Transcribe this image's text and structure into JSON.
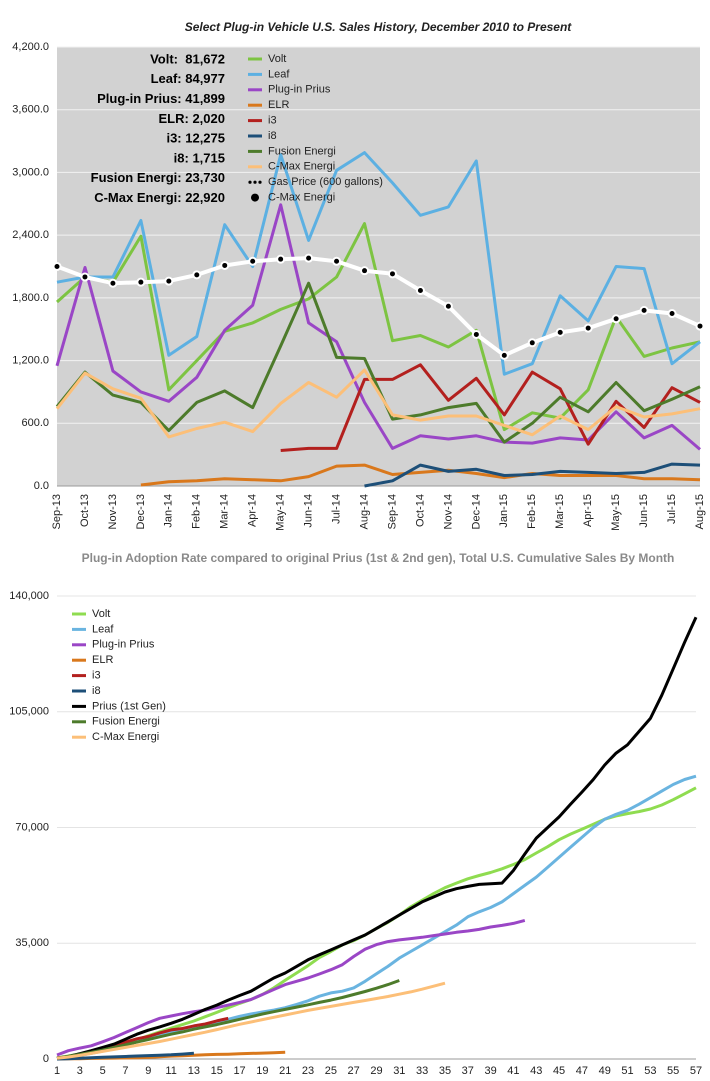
{
  "chart_data": [
    {
      "type": "line",
      "title": "Select Plug-in Vehicle U.S. Sales History, December 2010 to Present",
      "annotations": [
        "Volt:  81,672",
        "Leaf: 84,977",
        "Plug-in Prius: 41,899",
        "ELR: 2,020",
        "i3: 12,275",
        "i8: 1,715",
        "Fusion Energi: 23,730",
        "C-Max Energi: 22,920"
      ],
      "categories": [
        "Sep-13",
        "Oct-13",
        "Nov-13",
        "Dec-13",
        "Jan-14",
        "Feb-14",
        "Mar-14",
        "Apr-14",
        "May-14",
        "Jun-14",
        "Jul-14",
        "Aug-14",
        "Sep-14",
        "Oct-14",
        "Nov-14",
        "Dec-14",
        "Jan-15",
        "Feb-15",
        "Mar-15",
        "Apr-15",
        "May-15",
        "Jun-15",
        "Jul-15",
        "Aug-15"
      ],
      "ylim": [
        0,
        4200
      ],
      "yticks": [
        {
          "value": 0,
          "label": "0.0"
        },
        {
          "value": 600,
          "label": "600.0"
        },
        {
          "value": 1200,
          "label": "1,200.0"
        },
        {
          "value": 1800,
          "label": "1,800.0"
        },
        {
          "value": 2400,
          "label": "2,400.0"
        },
        {
          "value": 3000,
          "label": "3,000.0"
        },
        {
          "value": 3600,
          "label": "3,600.0"
        },
        {
          "value": 4200,
          "label": "4,200.0"
        }
      ],
      "grid": true,
      "series": [
        {
          "name": "Volt",
          "color": "#7dc442",
          "values": [
            1760,
            2000,
            1950,
            2390,
            920,
            1200,
            1480,
            1560,
            1690,
            1790,
            2000,
            2510,
            1390,
            1440,
            1330,
            1490,
            540,
            700,
            650,
            920,
            1620,
            1240,
            1320,
            1380
          ]
        },
        {
          "name": "Leaf",
          "color": "#5cb0e2",
          "values": [
            1950,
            2000,
            2000,
            2540,
            1250,
            1430,
            2500,
            2100,
            3170,
            2350,
            3020,
            3190,
            2900,
            2590,
            2670,
            3110,
            1070,
            1170,
            1820,
            1580,
            2100,
            2080,
            1170,
            1380
          ]
        },
        {
          "name": "Plug-in Prius",
          "color": "#9a46c6",
          "values": [
            1150,
            2090,
            1100,
            900,
            810,
            1040,
            1490,
            1730,
            2690,
            1560,
            1380,
            800,
            360,
            480,
            450,
            480,
            420,
            410,
            460,
            440,
            710,
            460,
            580,
            350
          ]
        },
        {
          "name": "ELR",
          "color": "#d9781c",
          "values": [
            null,
            null,
            null,
            10,
            40,
            50,
            70,
            60,
            50,
            90,
            190,
            200,
            110,
            130,
            150,
            120,
            80,
            120,
            100,
            100,
            100,
            70,
            70,
            60
          ]
        },
        {
          "name": "i3",
          "color": "#b3201e",
          "values": [
            null,
            null,
            null,
            null,
            null,
            null,
            null,
            null,
            340,
            360,
            360,
            1020,
            1020,
            1160,
            820,
            1030,
            680,
            1090,
            930,
            400,
            810,
            560,
            940,
            800
          ]
        },
        {
          "name": "i8",
          "color": "#1d4f78",
          "values": [
            null,
            null,
            null,
            null,
            null,
            null,
            null,
            null,
            null,
            null,
            null,
            0,
            50,
            200,
            140,
            160,
            100,
            110,
            140,
            130,
            120,
            130,
            210,
            200
          ]
        },
        {
          "name": "Fusion Energi",
          "color": "#4d7b2b",
          "values": [
            760,
            1090,
            870,
            800,
            530,
            800,
            910,
            750,
            1340,
            1940,
            1230,
            1220,
            640,
            680,
            750,
            790,
            420,
            600,
            850,
            710,
            990,
            720,
            830,
            950
          ]
        },
        {
          "name": "C-Max Energi",
          "color": "#fcbf78",
          "values": [
            740,
            1080,
            930,
            840,
            470,
            550,
            610,
            520,
            790,
            990,
            850,
            1110,
            680,
            630,
            670,
            670,
            580,
            490,
            670,
            540,
            760,
            660,
            690,
            740
          ]
        },
        {
          "name": "Gas Price (600 gallons)",
          "color": "#ffffff",
          "marker": "dot",
          "marker_color": "#000000",
          "values": [
            2100,
            2000,
            1940,
            1950,
            1960,
            2020,
            2110,
            2150,
            2170,
            2180,
            2150,
            2060,
            2030,
            1870,
            1720,
            1450,
            1250,
            1370,
            1470,
            1510,
            1600,
            1680,
            1650,
            1530
          ]
        }
      ],
      "legend_extra": [
        {
          "name": "C-Max Energi",
          "color": "#000000"
        }
      ]
    },
    {
      "type": "line",
      "title": "Plug-in Adoption Rate compared to original Prius (1st & 2nd gen), Total U.S. Cumulative Sales By Month",
      "x": [
        1,
        2,
        3,
        4,
        5,
        6,
        7,
        8,
        9,
        10,
        11,
        12,
        13,
        14,
        15,
        16,
        17,
        18,
        19,
        20,
        21,
        22,
        23,
        24,
        25,
        26,
        27,
        28,
        29,
        30,
        31,
        32,
        33,
        34,
        35,
        36,
        37,
        38,
        39,
        40,
        41,
        42,
        43,
        44,
        45,
        46,
        47,
        48,
        49,
        50,
        51,
        52,
        53,
        54,
        55,
        56,
        57
      ],
      "xlim": [
        1,
        57
      ],
      "xticks": [
        1,
        3,
        5,
        7,
        9,
        11,
        13,
        15,
        17,
        19,
        21,
        23,
        25,
        27,
        29,
        31,
        33,
        35,
        37,
        39,
        41,
        43,
        45,
        47,
        49,
        51,
        53,
        55,
        57
      ],
      "ylim": [
        0,
        140000
      ],
      "yticks": [
        0,
        {
          "value": 35000,
          "label": "35,000"
        },
        {
          "value": 70000,
          "label": "70,000"
        },
        {
          "value": 105000,
          "label": "105,000"
        },
        {
          "value": 140000,
          "label": "140,000"
        }
      ],
      "grid": true,
      "series": [
        {
          "name": "Volt",
          "color": "#8fdc50",
          "values": [
            300,
            900,
            1500,
            2200,
            3000,
            3800,
            4800,
            5800,
            7000,
            8200,
            9300,
            10400,
            11500,
            12800,
            14100,
            15500,
            16800,
            18000,
            19500,
            21500,
            23800,
            26000,
            28200,
            30700,
            32500,
            34500,
            35800,
            37500,
            39500,
            41300,
            43500,
            46000,
            48000,
            50000,
            51800,
            53200,
            54500,
            55500,
            56400,
            57500,
            58800,
            60300,
            62300,
            64200,
            66300,
            68000,
            69500,
            71000,
            72500,
            73500,
            74200,
            74800,
            75600,
            76800,
            78400,
            80200,
            82000
          ]
        },
        {
          "name": "Leaf",
          "color": "#6ab4e0",
          "values": [
            100,
            500,
            1100,
            1700,
            2400,
            3300,
            4200,
            5200,
            6300,
            7200,
            8200,
            9100,
            9800,
            10500,
            11200,
            12000,
            12900,
            13600,
            14200,
            14800,
            15500,
            16500,
            17600,
            19000,
            20000,
            20500,
            21500,
            23500,
            25800,
            28000,
            30500,
            32500,
            34500,
            36500,
            38500,
            40500,
            43000,
            44500,
            45800,
            47500,
            50000,
            52500,
            55000,
            58000,
            61000,
            64000,
            67000,
            70000,
            72500,
            74000,
            75200,
            77000,
            79000,
            81000,
            83000,
            84500,
            85500
          ]
        },
        {
          "name": "Plug-in Prius",
          "color": "#9a46c6",
          "values": [
            1200,
            2500,
            3300,
            4000,
            5200,
            6500,
            8000,
            9500,
            11000,
            12300,
            13000,
            13700,
            14300,
            14800,
            15500,
            16300,
            17100,
            18000,
            19500,
            21000,
            22500,
            23500,
            24500,
            25700,
            27000,
            28500,
            31000,
            33200,
            34600,
            35500,
            36000,
            36400,
            36800,
            37300,
            37800,
            38300,
            38700,
            39200,
            39900,
            40400,
            41000,
            41900,
            null,
            null,
            null,
            null,
            null,
            null,
            null,
            null,
            null,
            null,
            null,
            null,
            null,
            null,
            null
          ]
        },
        {
          "name": "ELR",
          "color": "#d9781c",
          "values": [
            10,
            50,
            100,
            170,
            230,
            280,
            330,
            380,
            480,
            670,
            870,
            980,
            1110,
            1260,
            1380,
            1460,
            1580,
            1680,
            1780,
            1880,
            2020,
            null,
            null,
            null,
            null,
            null,
            null,
            null,
            null,
            null,
            null,
            null,
            null,
            null,
            null,
            null,
            null,
            null,
            null,
            null,
            null,
            null,
            null,
            null,
            null,
            null,
            null,
            null,
            null,
            null,
            null,
            null,
            null,
            null,
            null,
            null,
            null
          ]
        },
        {
          "name": "i3",
          "color": "#b3201e",
          "values": [
            340,
            700,
            1060,
            2080,
            3100,
            4260,
            5080,
            6110,
            6790,
            7880,
            8810,
            9210,
            10020,
            10580,
            11520,
            12275,
            null,
            null,
            null,
            null,
            null,
            null,
            null,
            null,
            null,
            null,
            null,
            null,
            null,
            null,
            null,
            null,
            null,
            null,
            null,
            null,
            null,
            null,
            null,
            null,
            null,
            null,
            null,
            null,
            null,
            null,
            null,
            null,
            null,
            null,
            null,
            null,
            null,
            null,
            null,
            null,
            null
          ]
        },
        {
          "name": "i8",
          "color": "#1d4f78",
          "values": [
            0,
            50,
            250,
            390,
            550,
            650,
            760,
            900,
            1030,
            1150,
            1280,
            1490,
            1715,
            null,
            null,
            null,
            null,
            null,
            null,
            null,
            null,
            null,
            null,
            null,
            null,
            null,
            null,
            null,
            null,
            null,
            null,
            null,
            null,
            null,
            null,
            null,
            null,
            null,
            null,
            null,
            null,
            null,
            null,
            null,
            null,
            null,
            null,
            null,
            null,
            null,
            null,
            null,
            null,
            null,
            null,
            null,
            null
          ]
        },
        {
          "name": "Prius (1st Gen)",
          "color": "#000000",
          "values": [
            200,
            800,
            1600,
            2500,
            3500,
            4500,
            6000,
            7500,
            8700,
            9700,
            10800,
            12000,
            13500,
            15000,
            16300,
            17800,
            19200,
            20500,
            22500,
            24500,
            26000,
            28000,
            30000,
            31500,
            33000,
            34500,
            36000,
            37500,
            39500,
            41500,
            43500,
            45500,
            47500,
            49000,
            50500,
            51500,
            52200,
            52800,
            53000,
            53200,
            57000,
            62000,
            66800,
            70000,
            73200,
            77000,
            80700,
            84500,
            88900,
            92500,
            95000,
            99000,
            103000,
            110000,
            118000,
            126000,
            133600
          ]
        },
        {
          "name": "Fusion Energi",
          "color": "#4d7b2b",
          "values": [
            300,
            800,
            1400,
            2000,
            2700,
            3500,
            4300,
            5100,
            5900,
            6700,
            7500,
            8200,
            9000,
            9700,
            10400,
            11200,
            12000,
            12800,
            13600,
            14300,
            15000,
            15700,
            16400,
            17100,
            17800,
            18600,
            19500,
            20400,
            21400,
            22500,
            23730,
            null,
            null,
            null,
            null,
            null,
            null,
            null,
            null,
            null,
            null,
            null,
            null,
            null,
            null,
            null,
            null,
            null,
            null,
            null,
            null,
            null,
            null,
            null,
            null,
            null,
            null
          ]
        },
        {
          "name": "C-Max Energi",
          "color": "#fcbf78",
          "values": [
            200,
            600,
            1100,
            1700,
            2300,
            2900,
            3500,
            4100,
            4700,
            5300,
            6000,
            6700,
            7400,
            8100,
            8900,
            9700,
            10500,
            11200,
            11900,
            12600,
            13300,
            14000,
            14700,
            15300,
            15900,
            16500,
            17100,
            17700,
            18300,
            18900,
            19600,
            20300,
            21100,
            22000,
            22920,
            null,
            null,
            null,
            null,
            null,
            null,
            null,
            null,
            null,
            null,
            null,
            null,
            null,
            null,
            null,
            null,
            null,
            null,
            null,
            null,
            null,
            null
          ]
        }
      ]
    }
  ]
}
